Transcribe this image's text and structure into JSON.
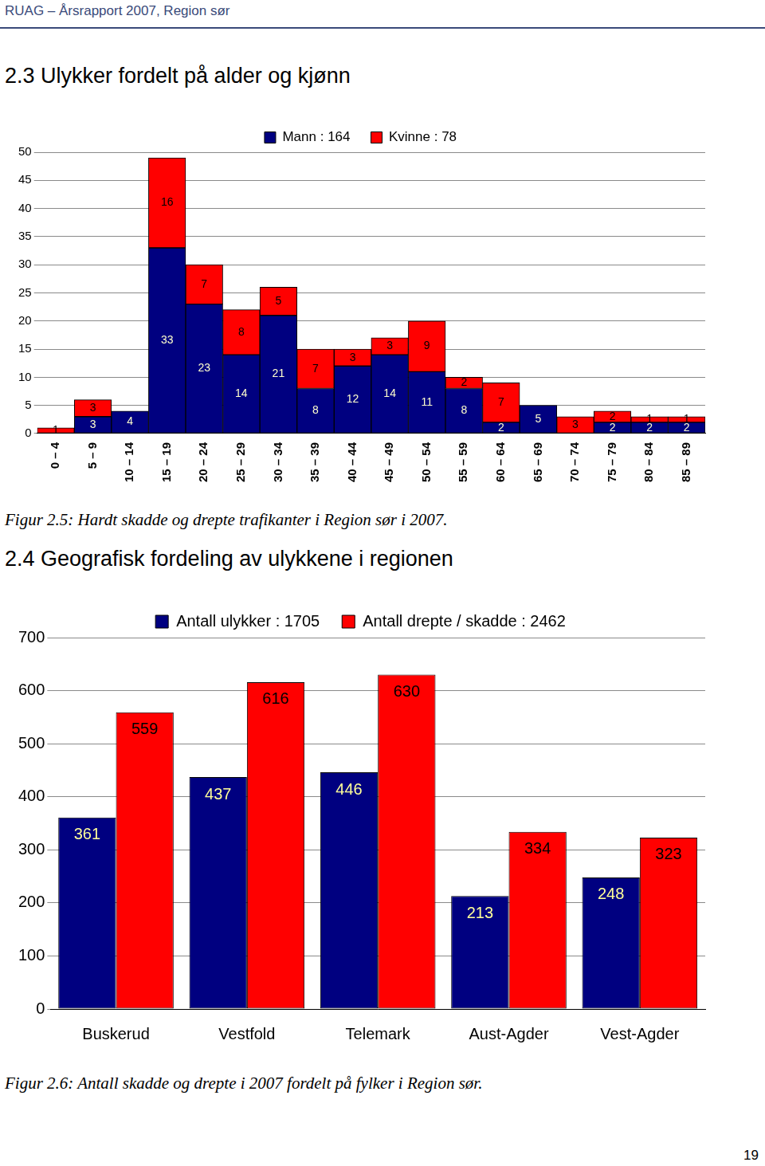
{
  "header": "RUAG – Årsrapport 2007, Region sør",
  "page_number": 19,
  "sections": [
    {
      "heading": "2.3 Ulykker fordelt på alder og kjønn",
      "caption": "Figur 2.5: Hardt skadde og drepte trafikanter i Region sør i 2007."
    },
    {
      "heading": "2.4 Geografisk fordeling av ulykkene i regionen",
      "caption": "Figur 2.6: Antall skadde og drepte i 2007 fordelt på fylker i Region sør."
    }
  ],
  "chart_data": [
    {
      "type": "bar",
      "stacked": true,
      "categories": [
        "0 – 4",
        "5 – 9",
        "10 – 14",
        "15 – 19",
        "20 – 24",
        "25 – 29",
        "30 – 34",
        "35 – 39",
        "40 – 44",
        "45 – 49",
        "50 – 54",
        "55 – 59",
        "60 – 64",
        "65 – 69",
        "70 – 74",
        "75 – 79",
        "80 – 84",
        "85 – 89"
      ],
      "series": [
        {
          "name": "Mann : 164",
          "color": "#000080",
          "values": [
            0,
            3,
            4,
            33,
            23,
            14,
            21,
            8,
            12,
            14,
            11,
            8,
            2,
            5,
            0,
            2,
            2,
            2
          ]
        },
        {
          "name": "Kvinne : 78",
          "color": "#ff0000",
          "values": [
            1,
            3,
            0,
            16,
            7,
            8,
            5,
            7,
            3,
            3,
            9,
            2,
            7,
            0,
            3,
            2,
            1,
            1
          ]
        }
      ],
      "ylim": [
        0,
        50
      ],
      "yticks": [
        0,
        5,
        10,
        15,
        20,
        25,
        30,
        35,
        40,
        45,
        50
      ],
      "grid": true,
      "legend": "top",
      "data_labels": true
    },
    {
      "type": "bar",
      "categories": [
        "Buskerud",
        "Vestfold",
        "Telemark",
        "Aust-Agder",
        "Vest-Agder"
      ],
      "series": [
        {
          "name": "Antall ulykker : 1705",
          "color": "#000080",
          "values": [
            361,
            437,
            446,
            213,
            248
          ]
        },
        {
          "name": "Antall drepte / skadde : 2462",
          "color": "#ff0000",
          "values": [
            559,
            616,
            630,
            334,
            323
          ]
        }
      ],
      "ylim": [
        0,
        700
      ],
      "yticks": [
        0,
        100,
        200,
        300,
        400,
        500,
        600,
        700
      ],
      "grid": true,
      "legend": "top",
      "data_labels": true
    }
  ]
}
